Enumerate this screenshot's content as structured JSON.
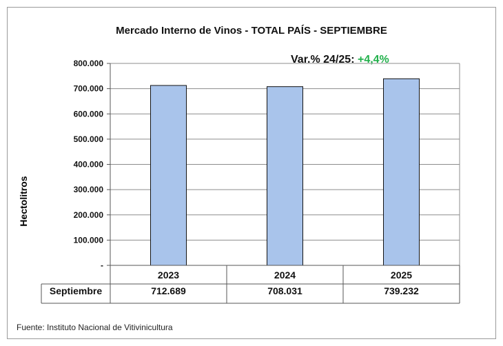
{
  "chart_data": {
    "type": "bar",
    "title": "Mercado Interno de Vinos  - TOTAL PAÍS  - SEPTIEMBRE",
    "ylabel": "Hectolitros",
    "categories": [
      "2023",
      "2024",
      "2025"
    ],
    "series": [
      {
        "name": "Septiembre",
        "values": [
          712689,
          708031,
          739232
        ]
      }
    ],
    "value_labels": [
      "712.689",
      "708.031",
      "739.232"
    ],
    "ylim": [
      0,
      800000
    ],
    "y_ticks": [
      0,
      100000,
      200000,
      300000,
      400000,
      500000,
      600000,
      700000,
      800000
    ],
    "y_tick_labels": [
      "-",
      "100.000",
      "200.000",
      "300.000",
      "400.000",
      "500.000",
      "600.000",
      "700.000",
      "800.000"
    ],
    "grid": true,
    "bar_color": "#a9c4eb",
    "bar_border_color": "#111111",
    "annotation": {
      "label": "Var.% 24/25:",
      "value": "+4,4%",
      "value_color": "#22b14c"
    }
  },
  "source": "Fuente: Instituto Nacional de Vitivinicultura"
}
